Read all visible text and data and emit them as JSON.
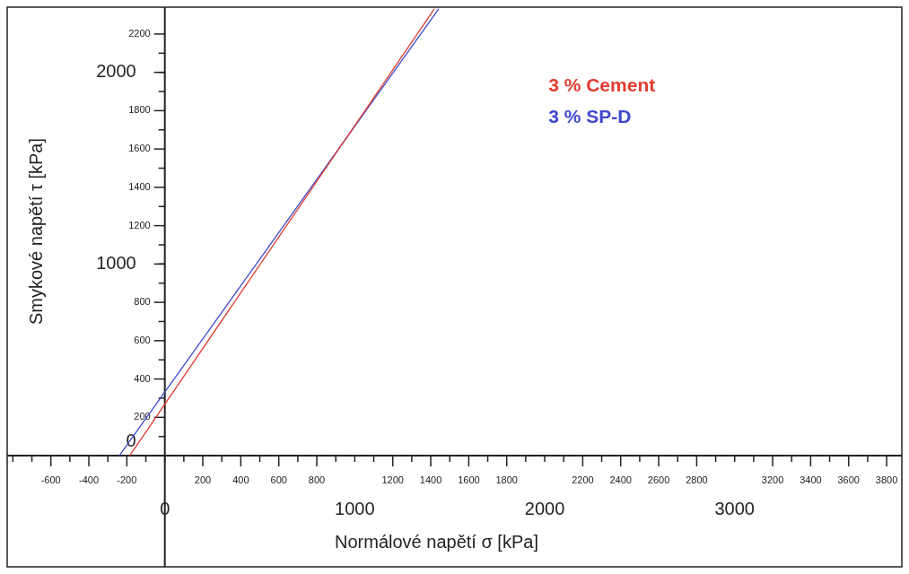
{
  "chart_data": {
    "type": "line",
    "xlabel": "Normálové napětí σ [kPa]",
    "ylabel": "Smykové napětí τ [kPa]",
    "legend": "top right",
    "xlim": [
      -830,
      3880
    ],
    "ylim": [
      -580,
      2340
    ],
    "xticks": [
      {
        "value": -800,
        "label": null
      },
      {
        "value": -700,
        "label": null
      },
      -600,
      {
        "value": -500,
        "label": null
      },
      -400,
      {
        "value": -300,
        "label": null
      },
      -200,
      {
        "value": -100,
        "label": null
      },
      {
        "value": 0,
        "label": null
      },
      {
        "value": 100,
        "label": null
      },
      200,
      {
        "value": 300,
        "label": null
      },
      400,
      {
        "value": 500,
        "label": null
      },
      600,
      {
        "value": 700,
        "label": null
      },
      800,
      {
        "value": 900,
        "label": null
      },
      {
        "value": 1000,
        "label": null
      },
      {
        "value": 1100,
        "label": null
      },
      1200,
      {
        "value": 1300,
        "label": null
      },
      1400,
      {
        "value": 1500,
        "label": null
      },
      1600,
      {
        "value": 1700,
        "label": null
      },
      1800,
      {
        "value": 1900,
        "label": null
      },
      {
        "value": 2000,
        "label": null
      },
      {
        "value": 2100,
        "label": null
      },
      2200,
      {
        "value": 2300,
        "label": null
      },
      2400,
      {
        "value": 2500,
        "label": null
      },
      2600,
      {
        "value": 2700,
        "label": null
      },
      2800,
      {
        "value": 2900,
        "label": null
      },
      {
        "value": 3000,
        "label": null
      },
      {
        "value": 3100,
        "label": null
      },
      3200,
      {
        "value": 3300,
        "label": null
      },
      3400,
      {
        "value": 3500,
        "label": null
      },
      3600,
      {
        "value": 3700,
        "label": null
      },
      3800
    ],
    "x2lim": [
      -830,
      3880
    ],
    "x2ticks": [
      0,
      1000,
      2000,
      3000
    ],
    "y2ticks": [
      {
        "value": 0,
        "label": null
      },
      {
        "value": 100,
        "label": null
      },
      200,
      {
        "value": 300,
        "label": null
      },
      400,
      {
        "value": 500,
        "label": null
      },
      600,
      {
        "value": 700,
        "label": null
      },
      800,
      {
        "value": 900,
        "label": null
      },
      {
        "value": 1000,
        "label": null
      },
      {
        "value": 1100,
        "label": null
      },
      1200,
      {
        "value": 1300,
        "label": null
      },
      1400,
      {
        "value": 1500,
        "label": null
      },
      1600,
      {
        "value": 1700,
        "label": null
      },
      1800,
      {
        "value": 1900,
        "label": null
      },
      {
        "value": 2000,
        "label": null
      },
      {
        "value": 2100,
        "label": null
      },
      2200
    ],
    "y2lim": [
      -580,
      2340
    ],
    "yticks": [
      0,
      1000,
      2000
    ],
    "series": [
      {
        "name": "3 % Cement",
        "color": "#e03c31",
        "type": "line",
        "x": [
          -185,
          1419
        ],
        "values": [
          0,
          2331
        ]
      },
      {
        "name": "3 % SP-D",
        "color": "#3f48cc",
        "type": "line",
        "x": [
          -240,
          1442
        ],
        "values": [
          0,
          2331
        ]
      }
    ]
  }
}
